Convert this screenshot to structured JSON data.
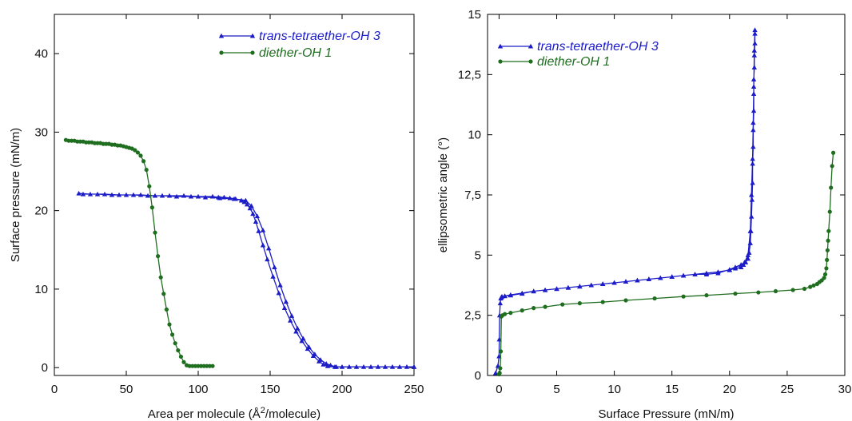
{
  "chart_data": [
    {
      "type": "line",
      "xlabel": "Area per molecule (Å²/molecule)",
      "ylabel": "Surface pressure (mN/m)",
      "xlim": [
        0,
        250
      ],
      "ylim": [
        -1,
        45
      ],
      "xticks": [
        "0",
        "50",
        "100",
        "150",
        "200",
        "250"
      ],
      "yticks": [
        "0",
        "10",
        "20",
        "30",
        "40"
      ],
      "xtick_values": [
        0,
        50,
        100,
        150,
        200,
        250
      ],
      "ytick_values": [
        0,
        10,
        20,
        30,
        40
      ],
      "grid": false,
      "legend": "top-right",
      "series": [
        {
          "name": "trans-tetraether-OH 3",
          "color": "#1c1cc8",
          "marker": "triangle",
          "x": [
            250,
            240,
            230,
            220,
            210,
            200,
            195,
            190,
            187,
            184,
            180,
            176,
            172,
            168,
            164,
            160,
            156,
            152,
            148,
            145,
            142,
            140,
            138,
            136,
            134,
            132,
            130,
            126,
            122,
            118,
            114,
            110,
            100,
            90,
            80,
            70,
            60,
            50,
            40,
            30,
            20,
            17,
            25,
            35,
            45,
            55,
            65,
            75,
            85,
            95,
            105,
            115,
            125,
            133,
            137,
            141,
            145,
            149,
            153,
            157,
            161,
            165,
            169,
            173,
            177,
            181,
            185,
            189,
            192,
            196,
            205,
            215,
            225,
            235,
            245,
            250
          ],
          "y": [
            0.1,
            0.1,
            0.1,
            0.1,
            0.1,
            0.1,
            0.1,
            0.2,
            0.4,
            0.8,
            1.5,
            2.4,
            3.4,
            4.6,
            6.0,
            7.6,
            9.5,
            11.6,
            13.8,
            15.6,
            17.4,
            18.6,
            19.6,
            20.3,
            20.8,
            21.1,
            21.3,
            21.5,
            21.6,
            21.7,
            21.7,
            21.8,
            21.8,
            21.9,
            21.9,
            21.9,
            22.0,
            22.0,
            22.0,
            22.1,
            22.1,
            22.2,
            22.1,
            22.1,
            22.0,
            22.0,
            21.9,
            21.9,
            21.8,
            21.8,
            21.7,
            21.6,
            21.5,
            21.3,
            20.6,
            19.3,
            17.5,
            15.2,
            12.8,
            10.5,
            8.4,
            6.6,
            5.0,
            3.7,
            2.6,
            1.7,
            1.0,
            0.5,
            0.3,
            0.1,
            0.1,
            0.1,
            0.1,
            0.1,
            0.1,
            0.1
          ]
        },
        {
          "name": "diether-OH 1",
          "color": "#1f6e1f",
          "marker": "circle",
          "x": [
            110,
            108,
            106,
            104,
            102,
            100,
            98,
            96,
            94,
            92,
            90,
            88,
            86,
            84,
            82,
            80,
            78,
            76,
            74,
            72,
            70,
            68,
            66,
            64,
            62,
            60,
            58,
            56,
            54,
            52,
            50,
            48,
            46,
            44,
            42,
            40,
            38,
            36,
            34,
            32,
            30,
            28,
            26,
            24,
            22,
            20,
            18,
            16,
            14,
            12,
            10,
            8
          ],
          "y": [
            0.2,
            0.2,
            0.2,
            0.2,
            0.2,
            0.2,
            0.2,
            0.2,
            0.2,
            0.3,
            0.7,
            1.4,
            2.2,
            3.1,
            4.2,
            5.5,
            7.4,
            9.4,
            11.5,
            14.2,
            17.2,
            20.4,
            23.1,
            25.2,
            26.3,
            27.0,
            27.4,
            27.7,
            27.9,
            28.0,
            28.1,
            28.2,
            28.3,
            28.3,
            28.4,
            28.4,
            28.5,
            28.5,
            28.5,
            28.6,
            28.6,
            28.6,
            28.7,
            28.7,
            28.7,
            28.8,
            28.8,
            28.8,
            28.9,
            28.9,
            28.9,
            29.0
          ]
        }
      ]
    },
    {
      "type": "line",
      "xlabel": "Surface Pressure (mN/m)",
      "ylabel": "ellipsometric angle (°)",
      "xlim": [
        -1,
        30
      ],
      "ylim": [
        0,
        15
      ],
      "xticks": [
        "0",
        "5",
        "10",
        "15",
        "20",
        "25",
        "30"
      ],
      "yticks": [
        "0",
        "2,5",
        "5",
        "7,5",
        "10",
        "12,5",
        "15"
      ],
      "xtick_values": [
        0,
        5,
        10,
        15,
        20,
        25,
        30
      ],
      "ytick_values": [
        0,
        2.5,
        5,
        7.5,
        10,
        12.5,
        15
      ],
      "grid": false,
      "legend": "top-left",
      "series": [
        {
          "name": "trans-tetraether-OH 3",
          "color": "#1c1cc8",
          "marker": "triangle",
          "x": [
            -0.3,
            -0.1,
            0.0,
            0.02,
            0.05,
            0.1,
            0.15,
            0.2,
            0.25,
            0.5,
            1.0,
            2.0,
            3.0,
            4.0,
            5.0,
            6.0,
            7.0,
            8.0,
            9.0,
            10.0,
            11.0,
            12.0,
            13.0,
            14.0,
            15.0,
            16.0,
            17.0,
            18.0,
            19.0,
            20.0,
            20.5,
            21.0,
            21.2,
            21.4,
            21.6,
            21.7,
            21.8,
            21.85,
            21.9,
            21.95,
            22.0,
            22.0,
            22.05,
            22.05,
            22.1,
            22.1,
            22.1,
            22.15,
            22.15,
            22.2,
            22.2,
            22.2,
            22.15,
            22.1,
            22.05,
            22.0,
            21.9,
            21.8,
            21.6,
            21.3,
            21.0,
            20.5,
            20.0,
            19.0,
            18.0,
            17.0,
            16.0,
            15.0,
            14.0,
            13.0,
            12.0,
            11.0,
            10.0,
            9.0,
            8.0,
            7.0,
            6.0,
            5.0,
            4.0,
            3.0,
            2.0,
            1.0,
            0.5,
            0.2
          ],
          "y": [
            0.1,
            0.4,
            0.8,
            1.5,
            2.5,
            3.0,
            3.2,
            3.25,
            3.28,
            3.3,
            3.33,
            3.4,
            3.5,
            3.55,
            3.6,
            3.65,
            3.7,
            3.75,
            3.8,
            3.85,
            3.9,
            3.95,
            4.0,
            4.05,
            4.1,
            4.15,
            4.2,
            4.25,
            4.3,
            4.38,
            4.45,
            4.5,
            4.6,
            4.7,
            4.85,
            5.1,
            5.5,
            6.0,
            6.6,
            7.3,
            8.0,
            8.8,
            9.5,
            10.2,
            11.0,
            11.7,
            12.3,
            12.8,
            13.3,
            13.8,
            14.2,
            14.35,
            13.5,
            12.0,
            10.5,
            9.0,
            7.5,
            6.0,
            5.0,
            4.7,
            4.6,
            4.5,
            4.4,
            4.25,
            4.2,
            4.2,
            4.15,
            4.1,
            4.05,
            4.0,
            3.95,
            3.9,
            3.85,
            3.8,
            3.75,
            3.7,
            3.65,
            3.6,
            3.55,
            3.5,
            3.42,
            3.35,
            3.3,
            3.25
          ]
        },
        {
          "name": "diether-OH 1",
          "color": "#1f6e1f",
          "marker": "circle",
          "x": [
            0.0,
            0.05,
            0.1,
            0.15,
            0.2,
            0.3,
            0.5,
            1.0,
            2.0,
            3.0,
            4.0,
            5.5,
            7.0,
            9.0,
            11.0,
            13.5,
            16.0,
            18.0,
            20.5,
            22.5,
            24.0,
            25.5,
            26.5,
            27.0,
            27.3,
            27.6,
            27.8,
            28.0,
            28.2,
            28.3,
            28.4,
            28.45,
            28.5,
            28.55,
            28.6,
            28.7,
            28.8,
            28.9,
            29.0
          ],
          "y": [
            0.05,
            0.1,
            0.3,
            1.0,
            2.45,
            2.5,
            2.55,
            2.6,
            2.7,
            2.8,
            2.85,
            2.95,
            3.0,
            3.05,
            3.12,
            3.2,
            3.28,
            3.33,
            3.4,
            3.45,
            3.5,
            3.55,
            3.6,
            3.68,
            3.74,
            3.8,
            3.88,
            3.95,
            4.05,
            4.2,
            4.45,
            4.8,
            5.2,
            5.6,
            6.0,
            6.8,
            7.8,
            8.7,
            9.25
          ]
        }
      ]
    }
  ]
}
